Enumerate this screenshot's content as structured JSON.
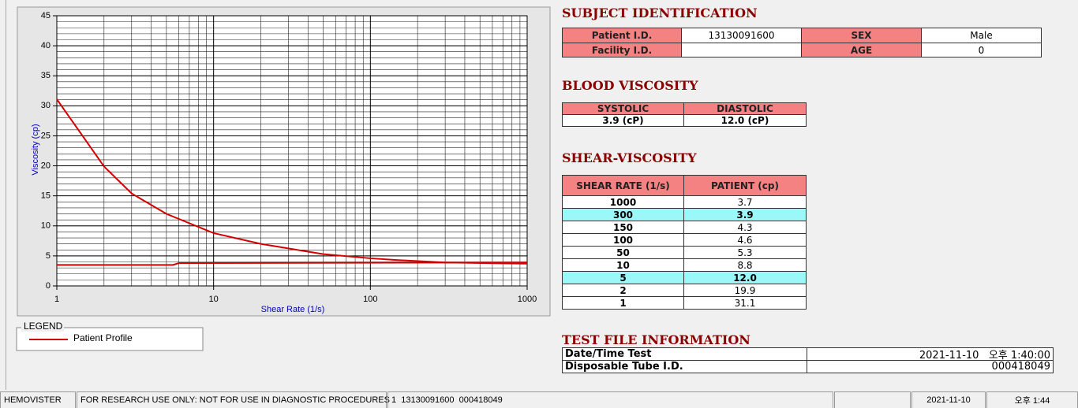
{
  "chart_data": {
    "type": "line",
    "x_label": "Shear Rate (1/s)",
    "y_label": "Viscosity (cp)",
    "xscale": "log",
    "xlim": [
      1,
      1000
    ],
    "xticks": [
      1,
      10,
      100,
      1000
    ],
    "ylim": [
      0,
      45
    ],
    "yticks": [
      0,
      5,
      10,
      15,
      20,
      25,
      30,
      35,
      40,
      45
    ],
    "grid": true,
    "series": [
      {
        "name": "Patient Profile",
        "color": "#d40000",
        "x": [
          1,
          2,
          3,
          5,
          10,
          20,
          50,
          100,
          150,
          300,
          1000
        ],
        "values": [
          31.1,
          19.9,
          15.4,
          12.0,
          8.8,
          7.0,
          5.3,
          4.6,
          4.3,
          3.9,
          3.7
        ]
      },
      {
        "color": "#d40000",
        "x": [
          1,
          5.5,
          6,
          1000
        ],
        "values": [
          3.5,
          3.5,
          3.8,
          3.9
        ]
      }
    ],
    "legend_title": "LEGEND"
  },
  "subject": {
    "title": "SUBJECT IDENTIFICATION",
    "patient_id_label": "Patient I.D.",
    "patient_id": "13130091600",
    "sex_label": "SEX",
    "sex": "Male",
    "facility_id_label": "Facility I.D.",
    "age_label": "AGE",
    "age": "0"
  },
  "blood": {
    "title": "BLOOD VISCOSITY",
    "headers": [
      "SYSTOLIC",
      "DIASTOLIC"
    ],
    "values": [
      "3.9 (cP)",
      "12.0 (cP)"
    ]
  },
  "shear": {
    "title": "SHEAR-VISCOSITY",
    "headers": [
      "SHEAR RATE (1/s)",
      "PATIENT (cp)"
    ],
    "rows": [
      {
        "rate": "1000",
        "patient": "3.7",
        "highlight": false
      },
      {
        "rate": "300",
        "patient": "3.9",
        "highlight": true
      },
      {
        "rate": "150",
        "patient": "4.3",
        "highlight": false
      },
      {
        "rate": "100",
        "patient": "4.6",
        "highlight": false
      },
      {
        "rate": "50",
        "patient": "5.3",
        "highlight": false
      },
      {
        "rate": "10",
        "patient": "8.8",
        "highlight": false
      },
      {
        "rate": "5",
        "patient": "12.0",
        "highlight": true
      },
      {
        "rate": "2",
        "patient": "19.9",
        "highlight": false
      },
      {
        "rate": "1",
        "patient": "31.1",
        "highlight": false
      }
    ]
  },
  "test_file": {
    "title": "TEST FILE INFORMATION",
    "rows": [
      [
        "Date/Time Test",
        "2021-11-10   오후 1:40:00"
      ],
      [
        "Disposable Tube I.D.",
        "000418049"
      ]
    ]
  },
  "status_bar": [
    "HEMOVISTER",
    "FOR RESEARCH USE ONLY: NOT FOR USE IN DIAGNOSTIC PROCEDURES",
    "1  13130091600  000418049",
    "2021-11-10",
    "오후 1:44"
  ]
}
